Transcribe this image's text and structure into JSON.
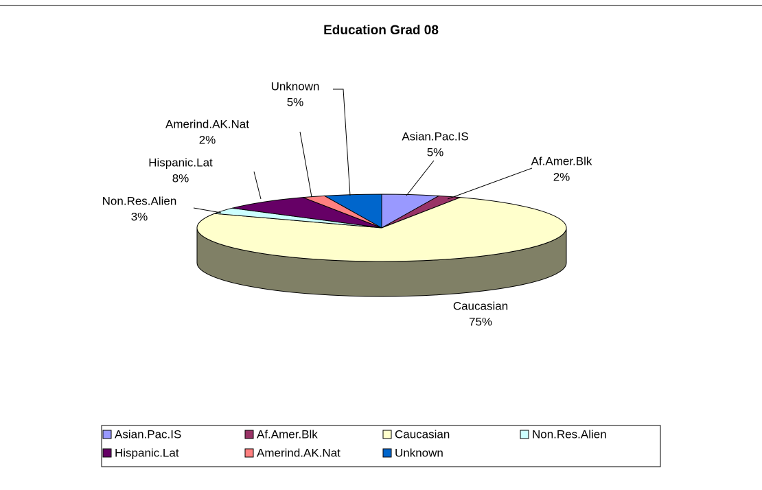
{
  "chart_data": {
    "type": "pie3d",
    "title": "Education Grad 08",
    "categories": [
      "Asian.Pac.IS",
      "Af.Amer.Blk",
      "Caucasian",
      "Non.Res.Alien",
      "Hispanic.Lat",
      "Amerind.AK.Nat",
      "Unknown"
    ],
    "values": [
      5,
      2,
      75,
      3,
      8,
      2,
      5
    ],
    "value_labels": [
      "5%",
      "2%",
      "75%",
      "3%",
      "8%",
      "2%",
      "5%"
    ],
    "colors": [
      "#9999ff",
      "#993366",
      "#ffffcc",
      "#ccffff",
      "#660066",
      "#ff8080",
      "#0066cc"
    ]
  }
}
